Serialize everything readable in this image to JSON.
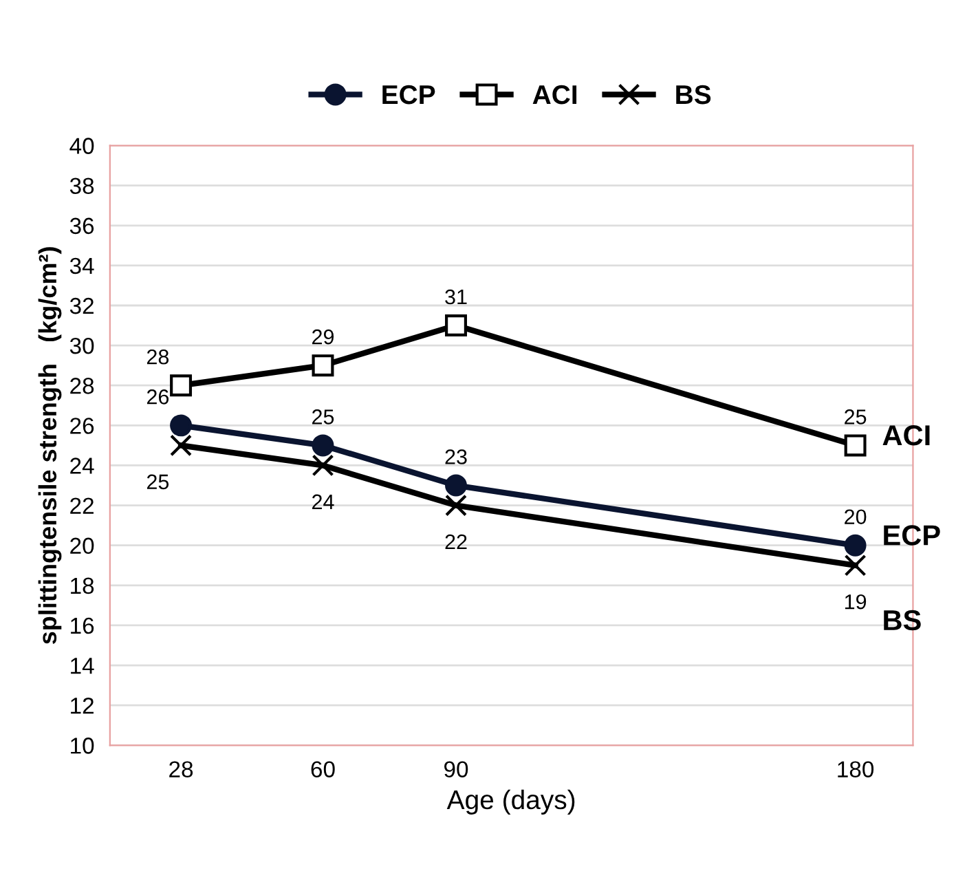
{
  "chart_data": {
    "type": "line",
    "xlabel": "Age (days)",
    "ylabel": "splittingtensile strength   (kg/cm²)",
    "x": [
      28,
      60,
      90,
      180
    ],
    "series": [
      {
        "name": "ECP",
        "color": "#0a1430",
        "marker": "circle",
        "values": [
          26,
          25,
          23,
          20
        ]
      },
      {
        "name": "ACI",
        "color": "#000000",
        "marker": "square",
        "values": [
          28,
          29,
          31,
          25
        ]
      },
      {
        "name": "BS",
        "color": "#000000",
        "marker": "cross",
        "values": [
          25,
          24,
          22,
          19
        ]
      }
    ],
    "xlim": [
      12,
      193
    ],
    "xticks": [
      28,
      60,
      90,
      180
    ],
    "ylim": [
      10,
      40
    ],
    "yticks": [
      10,
      12,
      14,
      16,
      18,
      20,
      22,
      24,
      26,
      28,
      30,
      32,
      34,
      36,
      38,
      40
    ],
    "grid": "y",
    "legend": "top",
    "data_labels": true,
    "line_style": "solid"
  }
}
